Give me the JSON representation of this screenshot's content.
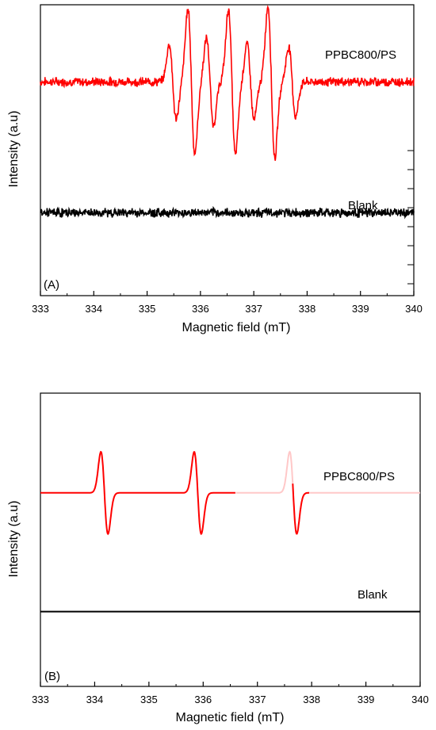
{
  "chart_data": [
    {
      "type": "line",
      "panel_label": "(A)",
      "xlabel": "Magnetic field (mT)",
      "ylabel": "Intensity (a.u)",
      "xlim": [
        333,
        340
      ],
      "x_ticks": [
        "333",
        "334",
        "335",
        "336",
        "337",
        "338",
        "339",
        "340"
      ],
      "grid": false,
      "series": [
        {
          "name": "PPBC800/PS",
          "color": "#ff0000",
          "baseline": 0.735,
          "noise": 0.012,
          "peaks": [
            {
              "x": 335.48,
              "amp": 0.13
            },
            {
              "x": 335.83,
              "amp": 0.25
            },
            {
              "x": 336.18,
              "amp": 0.15
            },
            {
              "x": 336.59,
              "amp": 0.25
            },
            {
              "x": 336.94,
              "amp": 0.13
            },
            {
              "x": 337.33,
              "amp": 0.26
            },
            {
              "x": 337.72,
              "amp": 0.12
            }
          ]
        },
        {
          "name": "Blank",
          "color": "#000000",
          "baseline": 0.285,
          "noise": 0.012,
          "peaks": []
        }
      ]
    },
    {
      "type": "line",
      "panel_label": "(B)",
      "xlabel": "Magnetic field (mT)",
      "ylabel": "Intensity (a.u)",
      "xlim": [
        333,
        340
      ],
      "x_ticks": [
        "333",
        "334",
        "335",
        "336",
        "337",
        "338",
        "339",
        "340"
      ],
      "grid": false,
      "series": [
        {
          "name": "PPBC800/PS",
          "color": "#ff0000",
          "faded_color": "#ffc8c8",
          "faded_from": 336.6,
          "baseline": 0.66,
          "noise": 0,
          "peaks": [
            {
              "x": 334.18,
              "amp": 0.14
            },
            {
              "x": 335.9,
              "amp": 0.14
            },
            {
              "x": 337.66,
              "amp": 0.14
            }
          ]
        },
        {
          "name": "Blank",
          "color": "#000000",
          "baseline": 0.255,
          "noise": 0,
          "peaks": []
        }
      ]
    }
  ]
}
